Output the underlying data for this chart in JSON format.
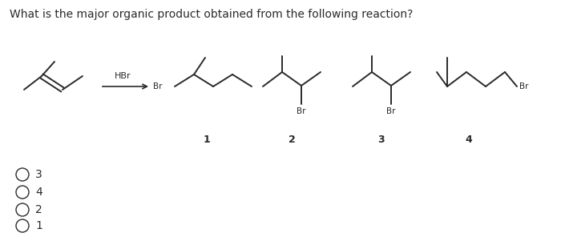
{
  "title": "What is the major organic product obtained from the following reaction?",
  "title_fontsize": 10,
  "background_color": "#ffffff",
  "text_color": "#2a2a2a",
  "line_color": "#2a2a2a",
  "hbr_label": "HBr",
  "choices": [
    "3",
    "4",
    "2",
    "1"
  ]
}
